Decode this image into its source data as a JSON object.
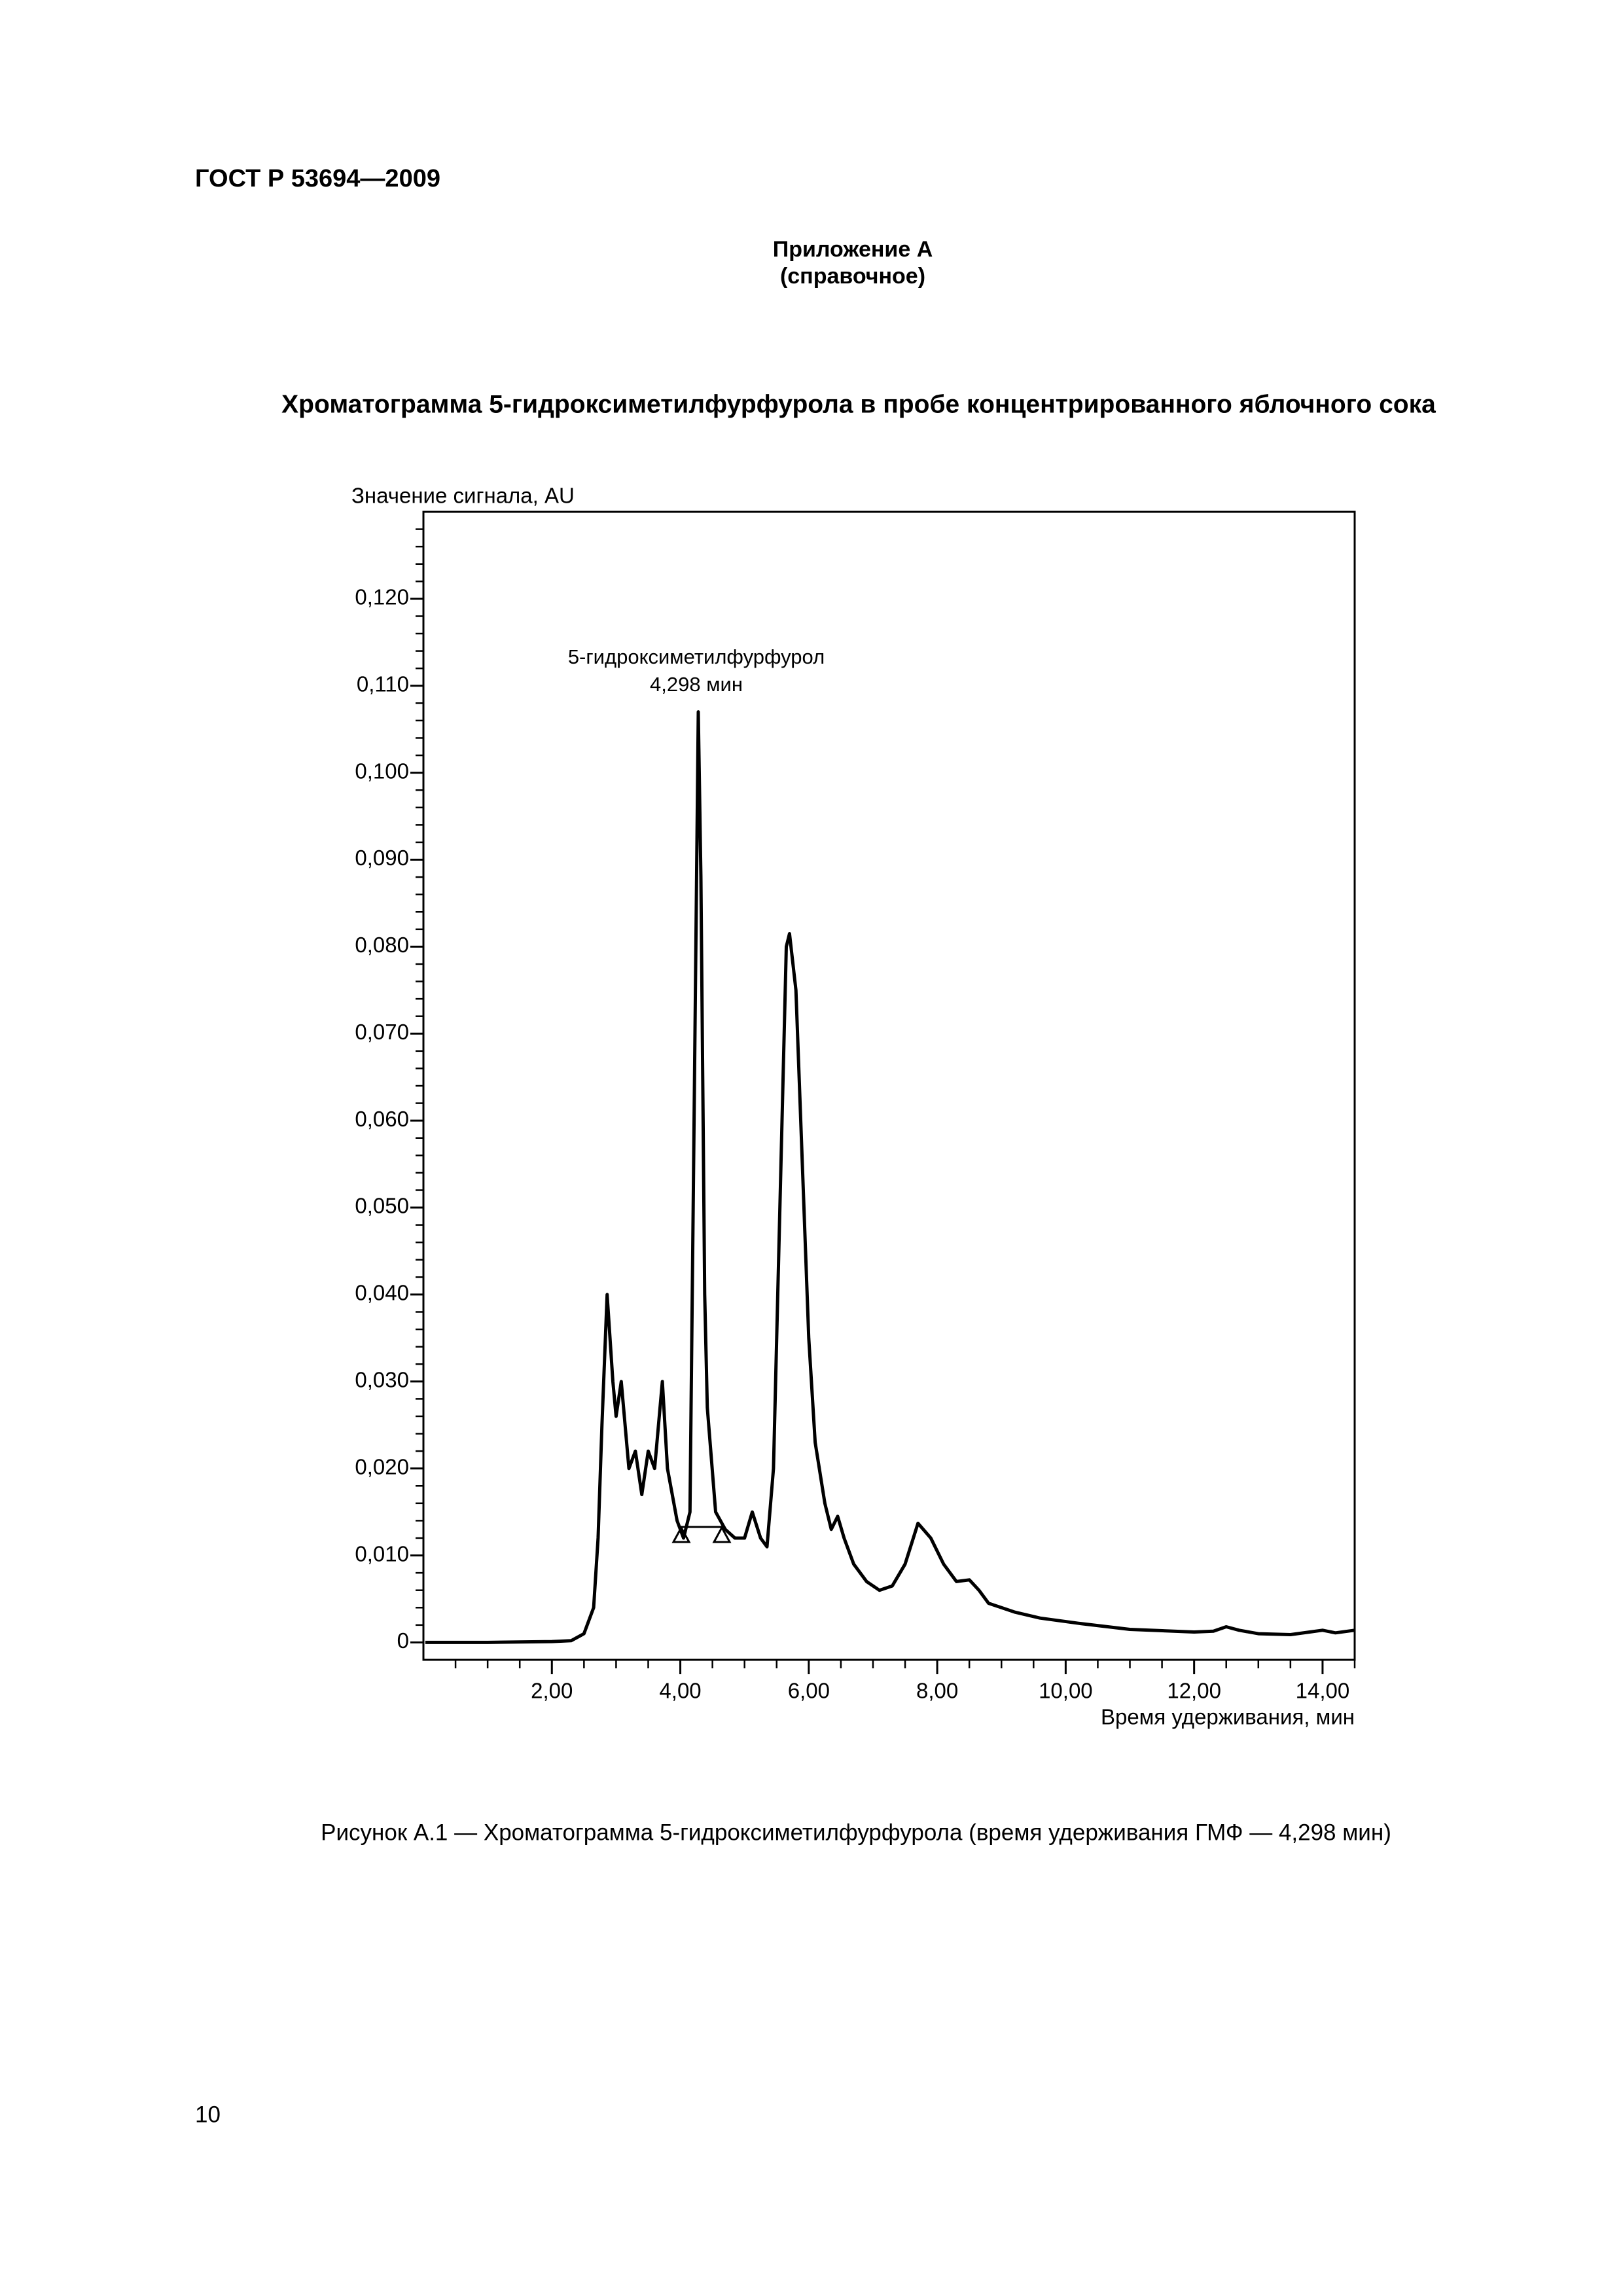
{
  "header": {
    "standard": "ГОСТ Р 53694—2009"
  },
  "appendix": {
    "title": "Приложение А",
    "status": "(справочное)"
  },
  "figure_title": "Хроматограмма 5-гидроксиметилфурфурола в пробе концентрированного яблочного сока",
  "chart_data": {
    "type": "line",
    "ylabel": "Значение сигнала, AU",
    "xlabel": "Время удерживания, мин",
    "annotation": [
      "5-гидроксиметилфурфурол",
      "4,298 мин"
    ],
    "x": [
      0.03,
      1.0,
      2.0,
      2.3,
      2.5,
      2.65,
      2.72,
      2.78,
      2.86,
      2.95,
      3.0,
      3.08,
      3.2,
      3.3,
      3.4,
      3.5,
      3.6,
      3.72,
      3.8,
      3.95,
      4.05,
      4.15,
      4.2,
      4.28,
      4.32,
      4.38,
      4.42,
      4.55,
      4.7,
      4.85,
      5.0,
      5.12,
      5.25,
      5.35,
      5.45,
      5.55,
      5.65,
      5.7,
      5.8,
      5.9,
      6.0,
      6.1,
      6.25,
      6.35,
      6.45,
      6.55,
      6.7,
      6.9,
      7.1,
      7.3,
      7.5,
      7.7,
      7.9,
      8.1,
      8.3,
      8.5,
      8.65,
      8.8,
      9.2,
      9.6,
      10.2,
      11.0,
      12.0,
      12.3,
      12.5,
      12.7,
      13.0,
      13.5,
      13.8,
      14.0,
      14.2,
      14.5
    ],
    "series": [
      {
        "color": "#000000",
        "values": [
          0,
          0,
          0.0001,
          0.0002,
          0.001,
          0.004,
          0.012,
          0.025,
          0.04,
          0.03,
          0.026,
          0.03,
          0.02,
          0.022,
          0.017,
          0.022,
          0.02,
          0.03,
          0.02,
          0.014,
          0.012,
          0.015,
          0.05,
          0.107,
          0.088,
          0.04,
          0.027,
          0.015,
          0.013,
          0.012,
          0.012,
          0.015,
          0.012,
          0.011,
          0.02,
          0.05,
          0.08,
          0.0815,
          0.075,
          0.055,
          0.035,
          0.023,
          0.016,
          0.013,
          0.0145,
          0.012,
          0.009,
          0.007,
          0.006,
          0.0065,
          0.009,
          0.0137,
          0.012,
          0.009,
          0.007,
          0.0072,
          0.006,
          0.0045,
          0.0035,
          0.0028,
          0.0022,
          0.0015,
          0.0012,
          0.0013,
          0.0018,
          0.0014,
          0.001,
          0.0009,
          0.0012,
          0.0014,
          0.0011,
          0.0014
        ]
      }
    ],
    "xlim": [
      0,
      14.5
    ],
    "ylim": [
      -0.002,
      0.13
    ],
    "xticks": [
      {
        "value": 2,
        "label": "2,00"
      },
      {
        "value": 4,
        "label": "4,00"
      },
      {
        "value": 6,
        "label": "6,00"
      },
      {
        "value": 8,
        "label": "8,00"
      },
      {
        "value": 10,
        "label": "10,00"
      },
      {
        "value": 12,
        "label": "12,00"
      },
      {
        "value": 14,
        "label": "14,00"
      }
    ],
    "yticks": [
      0,
      {
        "value": 0.01,
        "label": "0,010"
      },
      {
        "value": 0.02,
        "label": "0,020"
      },
      {
        "value": 0.03,
        "label": "0,030"
      },
      {
        "value": 0.04,
        "label": "0,040"
      },
      {
        "value": 0.05,
        "label": "0,050"
      },
      {
        "value": 0.06,
        "label": "0,060"
      },
      {
        "value": 0.07,
        "label": "0,070"
      },
      {
        "value": 0.08,
        "label": "0,080"
      },
      {
        "value": 0.09,
        "label": "0,090"
      },
      {
        "value": 0.1,
        "label": "0,100"
      },
      {
        "value": 0.11,
        "label": "0,110"
      },
      {
        "value": 0.12,
        "label": "0,120"
      }
    ],
    "xminorticks": [
      0.5,
      1,
      1.5,
      2.5,
      3,
      3.5,
      4.5,
      5,
      5.5,
      6.5,
      7,
      7.5,
      8.5,
      9,
      9.5,
      10.5,
      11,
      11.5,
      12.5,
      13,
      13.5,
      14.5
    ],
    "yminorticks": [
      0.002,
      0.004,
      0.006,
      0.008,
      0.012,
      0.014,
      0.016,
      0.018,
      0.022,
      0.024,
      0.026,
      0.028,
      0.032,
      0.034,
      0.036,
      0.038,
      0.042,
      0.044,
      0.046,
      0.048,
      0.052,
      0.054,
      0.056,
      0.058,
      0.062,
      0.064,
      0.066,
      0.068,
      0.072,
      0.074,
      0.076,
      0.078,
      0.082,
      0.084,
      0.086,
      0.088,
      0.092,
      0.094,
      0.096,
      0.098,
      0.102,
      0.104,
      0.106,
      0.108,
      0.112,
      0.114,
      0.116,
      0.118,
      0.122,
      0.124,
      0.126,
      0.128
    ]
  },
  "caption": "Рисунок А.1 — Хроматограмма 5-гидроксиметилфурфурола (время удерживания ГМФ — 4,298 мин)",
  "page_number": "10"
}
